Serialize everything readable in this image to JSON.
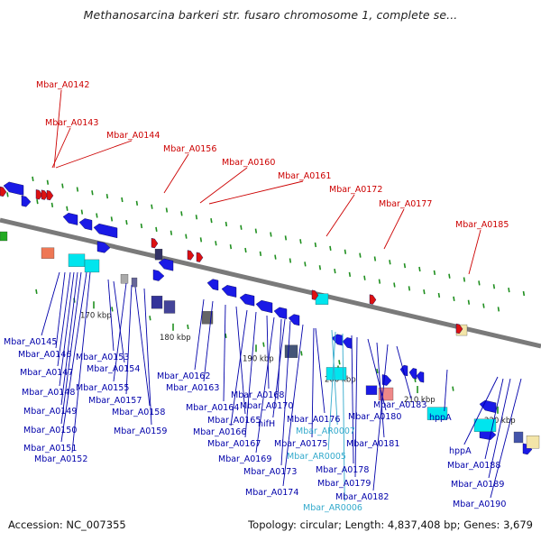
{
  "title": "Methanosarcina barkeri str. fusaro chromosome 1, complete se...",
  "footer": {
    "accession": "Accession: NC_007355",
    "summary": "Topology: circular; Length: 4,837,408 bp; Genes: 3,679"
  },
  "colors": {
    "rna_label": "#cc0000",
    "gene_label": "#0000aa",
    "rna_gene_label": "#33aacc",
    "backbone": "#808080",
    "cds": "#1a1ae6",
    "trna": "#dd1111",
    "rrna": "#00e5ee",
    "other": "#4b0082"
  },
  "scale": {
    "unit": "kbp",
    "ticks": [
      "170 kbp",
      "180 kbp",
      "190 kbp",
      "200 kbp",
      "210 kbp",
      "220 kbp"
    ]
  },
  "genes": [
    {
      "label": "Mbar_A0142",
      "type": "rna"
    },
    {
      "label": "Mbar_A0143",
      "type": "rna"
    },
    {
      "label": "Mbar_A0144",
      "type": "rna"
    },
    {
      "label": "Mbar_A0156",
      "type": "rna"
    },
    {
      "label": "Mbar_A0160",
      "type": "rna"
    },
    {
      "label": "Mbar_A0161",
      "type": "rna"
    },
    {
      "label": "Mbar_A0172",
      "type": "rna"
    },
    {
      "label": "Mbar_A0177",
      "type": "rna"
    },
    {
      "label": "Mbar_A0185",
      "type": "rna"
    },
    {
      "label": "Mbar_A0145",
      "type": "cds"
    },
    {
      "label": "Mbar_A0146",
      "type": "cds"
    },
    {
      "label": "Mbar_A0147",
      "type": "cds"
    },
    {
      "label": "Mbar_A0148",
      "type": "cds"
    },
    {
      "label": "Mbar_A0149",
      "type": "cds"
    },
    {
      "label": "Mbar_A0150",
      "type": "cds"
    },
    {
      "label": "Mbar_A0151",
      "type": "cds"
    },
    {
      "label": "Mbar_A0152",
      "type": "cds"
    },
    {
      "label": "Mbar_A0153",
      "type": "cds"
    },
    {
      "label": "Mbar_A0154",
      "type": "cds"
    },
    {
      "label": "Mbar_A0155",
      "type": "cds"
    },
    {
      "label": "Mbar_A0157",
      "type": "cds"
    },
    {
      "label": "Mbar_A0158",
      "type": "cds"
    },
    {
      "label": "Mbar_A0159",
      "type": "cds"
    },
    {
      "label": "Mbar_A0162",
      "type": "cds"
    },
    {
      "label": "Mbar_A0163",
      "type": "cds"
    },
    {
      "label": "Mbar_A0164",
      "type": "cds"
    },
    {
      "label": "Mbar_A0165",
      "type": "cds"
    },
    {
      "label": "Mbar_A0166",
      "type": "cds"
    },
    {
      "label": "Mbar_A0167",
      "type": "cds"
    },
    {
      "label": "Mbar_A0168",
      "type": "cds"
    },
    {
      "label": "Mbar_A0169",
      "type": "cds"
    },
    {
      "label": "Mbar_A0170",
      "type": "cds"
    },
    {
      "label": "nifH",
      "type": "cds"
    },
    {
      "label": "Mbar_A0173",
      "type": "cds"
    },
    {
      "label": "Mbar_A0174",
      "type": "cds"
    },
    {
      "label": "Mbar_A0175",
      "type": "cds"
    },
    {
      "label": "Mbar_A0176",
      "type": "cds"
    },
    {
      "label": "Mbar_AR0007",
      "type": "rna_gene"
    },
    {
      "label": "Mbar_AR0005",
      "type": "rna_gene"
    },
    {
      "label": "Mbar_AR0006",
      "type": "rna_gene"
    },
    {
      "label": "Mbar_A0178",
      "type": "cds"
    },
    {
      "label": "Mbar_A0179",
      "type": "cds"
    },
    {
      "label": "Mbar_A0180",
      "type": "cds"
    },
    {
      "label": "Mbar_A0181",
      "type": "cds"
    },
    {
      "label": "Mbar_A0182",
      "type": "cds"
    },
    {
      "label": "Mbar_A0183",
      "type": "cds"
    },
    {
      "label": "hppA",
      "type": "cds"
    },
    {
      "label": "hppA",
      "type": "cds"
    },
    {
      "label": "Mbar_A0188",
      "type": "cds"
    },
    {
      "label": "Mbar_A0189",
      "type": "cds"
    },
    {
      "label": "Mbar_A0190",
      "type": "cds"
    }
  ]
}
